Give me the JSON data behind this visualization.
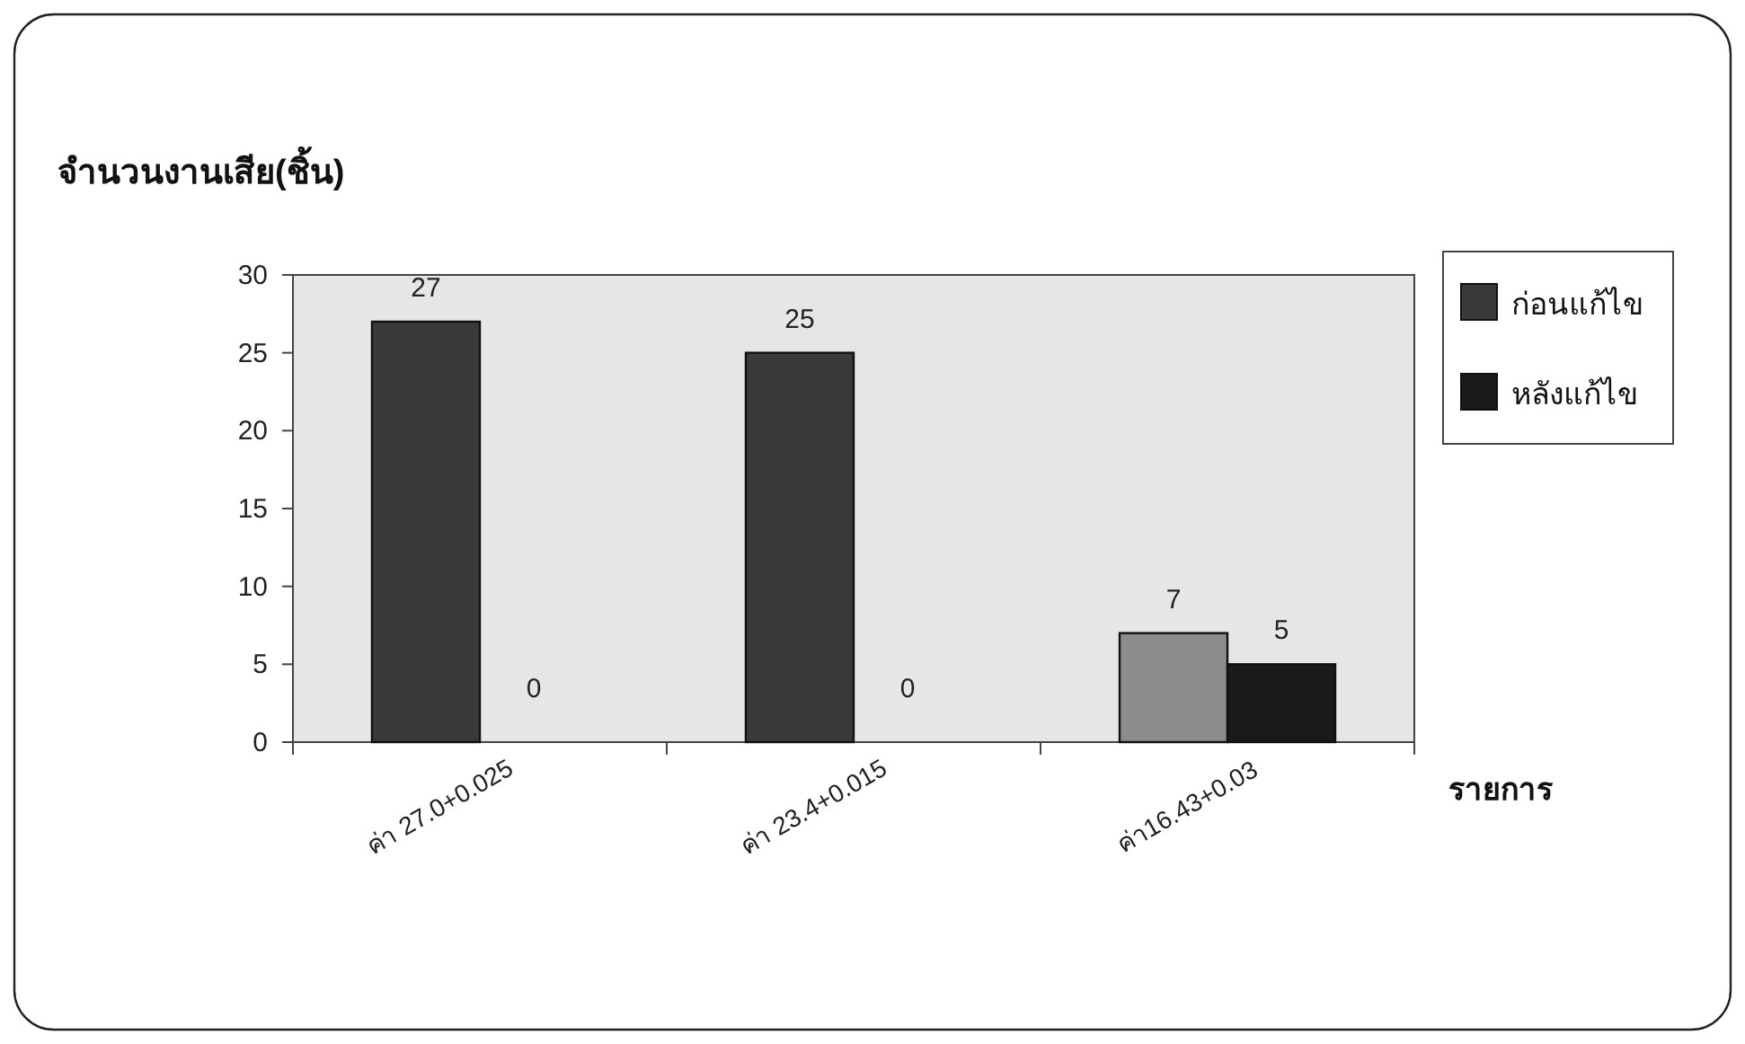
{
  "chart_data": {
    "type": "bar",
    "ylabel": "จำนวนงานเสีย(ชิ้น)",
    "xlabel": "รายการ",
    "categories": [
      "ค่า 27.0+0.025",
      "ค่า 23.4+0.015",
      "ค่า16.43+0.03"
    ],
    "series": [
      {
        "name": "ก่อนแก้ไข",
        "color": "#3a3a3a",
        "colors": [
          "#3a3a3a",
          "#3a3a3a",
          "#8c8c8c"
        ],
        "values": [
          27,
          25,
          7
        ]
      },
      {
        "name": "หลังแก้ไข",
        "color": "#1a1a1a",
        "values": [
          0,
          0,
          5
        ]
      }
    ],
    "ylim": [
      0,
      30
    ],
    "yticks": [
      0,
      5,
      10,
      15,
      20,
      25,
      30
    ],
    "grid": false,
    "legend": "right",
    "data_labels": true
  }
}
